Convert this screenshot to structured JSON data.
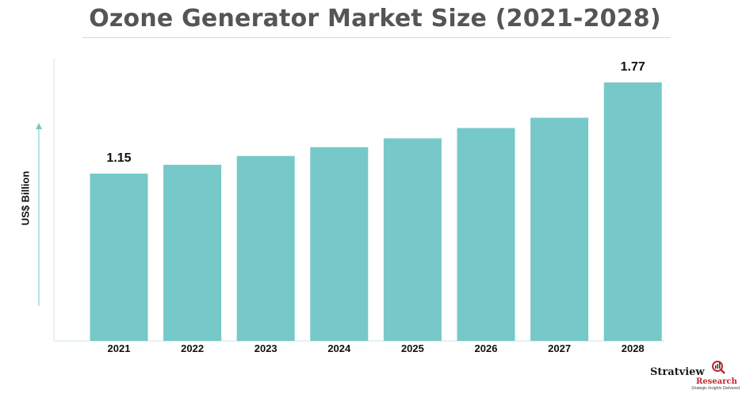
{
  "chart_data": {
    "type": "bar",
    "title": "Ozone Generator Market Size (2021-2028)",
    "xlabel": "",
    "ylabel": "US$ Billion",
    "categories": [
      "2021",
      "2022",
      "2023",
      "2024",
      "2025",
      "2026",
      "2027",
      "2028"
    ],
    "values": [
      1.15,
      1.21,
      1.27,
      1.33,
      1.39,
      1.46,
      1.53,
      1.77
    ],
    "data_labels": [
      {
        "category": "2021",
        "text": "1.15"
      },
      {
        "category": "2028",
        "text": "1.77"
      }
    ],
    "bar_color": "#76c9c8",
    "grid": false,
    "legend": "none"
  },
  "branding": {
    "logo_name": "Stratview",
    "logo_sub": "Research",
    "tagline": "Strategic Insights Delivered",
    "accent_color": "#c0282d"
  }
}
